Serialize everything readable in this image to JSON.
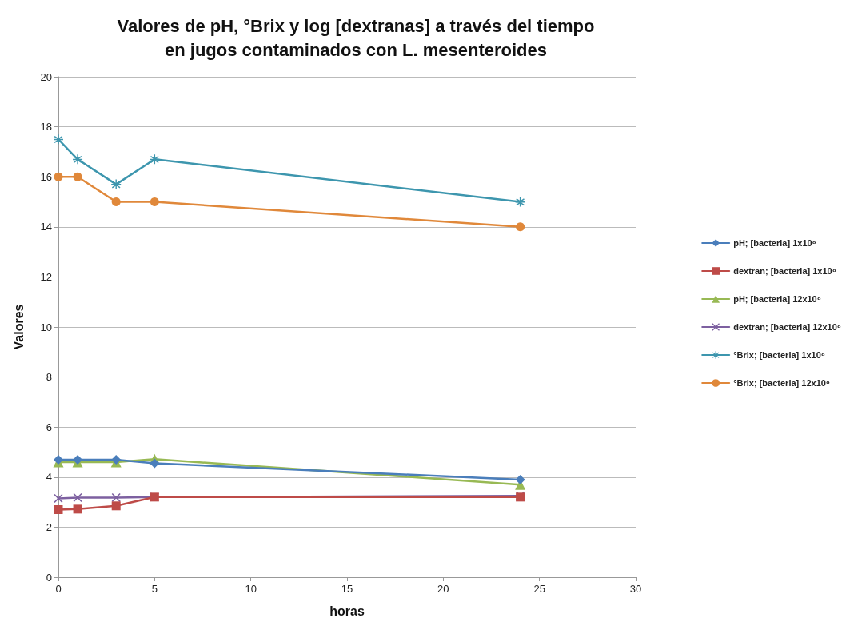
{
  "chart_data": {
    "type": "line",
    "title": "Valores de pH, °Brix y log [dextranas] a través del tiempo\nen jugos contaminados con L. mesenteroides",
    "xlabel": "horas",
    "ylabel": "Valores",
    "x": [
      0,
      1,
      3,
      5,
      24
    ],
    "xlim": [
      0,
      30
    ],
    "xticks": [
      0,
      5,
      10,
      15,
      20,
      25,
      30
    ],
    "ylim": [
      0,
      20
    ],
    "yticks": [
      0,
      2,
      4,
      6,
      8,
      10,
      12,
      14,
      16,
      18,
      20
    ],
    "grid": "y",
    "legend": "right",
    "line_style": "solid",
    "series": [
      {
        "name": "pH; [bacteria] 1x10⁸",
        "color": "#4a7ebb",
        "marker": "diamond",
        "values": [
          4.7,
          4.7,
          4.7,
          4.55,
          3.9
        ]
      },
      {
        "name": "dextran; [bacteria] 1x10⁸",
        "color": "#be4b48",
        "marker": "square",
        "values": [
          2.7,
          2.72,
          2.85,
          3.2,
          3.2
        ]
      },
      {
        "name": "pH; [bacteria] 12x10⁸",
        "color": "#98b954",
        "marker": "triangle",
        "values": [
          4.6,
          4.6,
          4.6,
          4.72,
          3.7
        ]
      },
      {
        "name": "dextran; [bacteria] 12x10⁸",
        "color": "#7d60a0",
        "marker": "cross",
        "values": [
          3.15,
          3.18,
          3.18,
          3.2,
          3.25
        ]
      },
      {
        "name": "°Brix; [bacteria] 1x10⁸",
        "color": "#3d96ae",
        "marker": "star",
        "values": [
          17.5,
          16.7,
          15.7,
          16.7,
          15.0
        ]
      },
      {
        "name": "°Brix; [bacteria] 12x10⁸",
        "color": "#e0883a",
        "marker": "circle",
        "values": [
          16,
          16,
          15,
          15,
          14
        ]
      }
    ]
  }
}
